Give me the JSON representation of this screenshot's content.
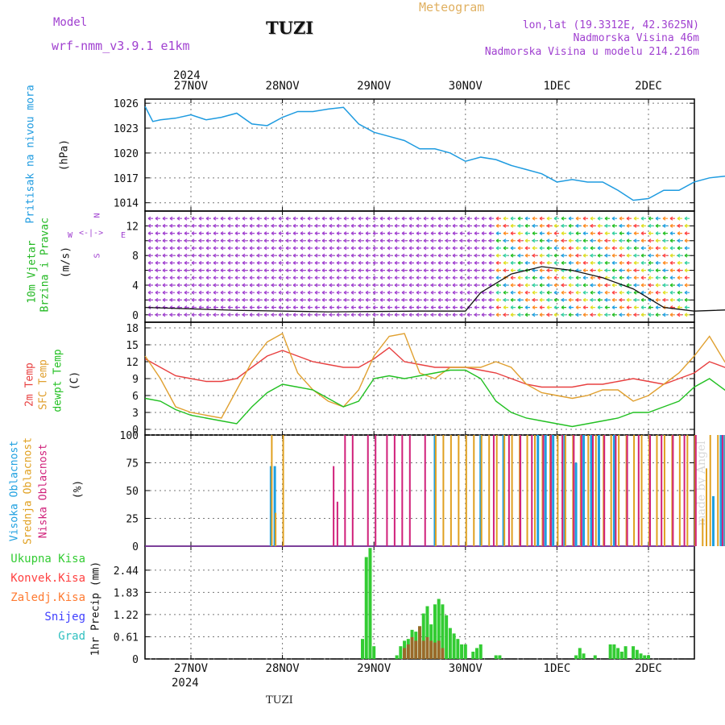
{
  "header": {
    "model_label": "Model",
    "model_name": "wrf-nmm_v3.9.1  e1km",
    "station": "TUZI",
    "title": "Meteogram",
    "lonlat": "lon,lat (19.3312E, 42.3625N)",
    "elev": "Nadmorska Visina 46m",
    "elev_model": "Nadmorska Visina u modelu 214.216m",
    "footer_station": "TUZI",
    "watermark": "made by Angel"
  },
  "colors": {
    "pressure": "#1e9be0",
    "temp2m": "#e84040",
    "sfc": "#e0a030",
    "dew": "#22c022",
    "high": "#1ea0e0",
    "mid": "#e0a020",
    "low": "#d0207a",
    "purple": "#a040d0",
    "total": "#33cc33",
    "convective": "#ff4040",
    "freezing": "#ff7a30",
    "snow": "#4040ff",
    "hail": "#30c0c0"
  },
  "dates": {
    "year": "2024",
    "labels": [
      "27NOV",
      "28NOV",
      "29NOV",
      "30NOV",
      "1DEC",
      "2DEC"
    ]
  },
  "panels": {
    "pressure": {
      "ylabel": "Pritisak na nivou mora",
      "unit": "(hPa)"
    },
    "wind": {
      "ylabel1": "10m Vjetar",
      "ylabel2": "Brzina i Pravac",
      "unit": "(m/s)",
      "compass_n": "N",
      "compass_s": "S",
      "compass_w": "W",
      "compass_e": "E"
    },
    "temp": {
      "ylabel1": "2m Temp",
      "ylabel2": "SFC Temp",
      "ylabel3": "dewpt Temp",
      "unit": "(C)"
    },
    "cloud": {
      "ylabel1": "Visoka Oblacnost",
      "ylabel2": "Srednja Oblacnost",
      "ylabel3": "Niska Oblacnost",
      "unit": "(%)"
    },
    "precip": {
      "ylabel": "1hr Precip (mm)",
      "legend": [
        "Ukupna Kisa",
        "Konvek.Kisa",
        "Zaledj.Kisa",
        "Snijeg",
        "Grad"
      ]
    }
  },
  "chart_data": [
    {
      "type": "line",
      "title": "Pritisak na nivou mora",
      "ylabel": "(hPa)",
      "ylim": [
        1013,
        1026.5
      ],
      "yticks": [
        1014,
        1017,
        1020,
        1023,
        1026
      ],
      "x_hours": [
        0,
        2,
        4,
        8,
        12,
        16,
        20,
        24,
        28,
        32,
        36,
        40,
        44,
        48,
        52,
        56,
        60,
        64,
        68,
        72,
        76,
        80,
        84,
        88,
        92,
        96,
        100,
        104,
        108,
        112,
        116,
        120,
        124,
        128,
        132,
        136,
        140,
        144,
        148,
        152,
        156,
        160,
        164,
        168,
        170
      ],
      "values": [
        1025.6,
        1023.8,
        1024,
        1024.2,
        1024.6,
        1024,
        1024.3,
        1024.8,
        1023.5,
        1023.3,
        1024.3,
        1025,
        1025,
        1025.3,
        1025.5,
        1023.5,
        1022.5,
        1022,
        1021.5,
        1020.5,
        1020.5,
        1020,
        1019,
        1019.5,
        1019.2,
        1018.5,
        1018,
        1017.5,
        1016.5,
        1016.8,
        1016.5,
        1016.5,
        1015.5,
        1014.3,
        1014.5,
        1015.5,
        1015.5,
        1016.5,
        1017,
        1017.2,
        1017.5,
        1018,
        1018.6,
        1017.8,
        1017.5
      ]
    },
    {
      "type": "line",
      "title": "10m Vjetar Brzina i Pravac",
      "ylabel": "(m/s)",
      "ylim": [
        -1,
        14
      ],
      "yticks": [
        0,
        4,
        8,
        12
      ],
      "yticks_extra": [
        2,
        6,
        10
      ],
      "x_hours": [
        0,
        24,
        48,
        72,
        84,
        88,
        96,
        104,
        112,
        120,
        128,
        136,
        144,
        160,
        170
      ],
      "values": [
        1,
        0.6,
        0.4,
        0.5,
        0.5,
        3,
        5.5,
        6.5,
        6,
        5,
        3.5,
        1,
        0.5,
        0.8,
        1
      ]
    },
    {
      "type": "line",
      "title": "2m / SFC / dewpt Temp",
      "ylabel": "(C)",
      "ylim": [
        -1,
        19
      ],
      "yticks": [
        0,
        3,
        6,
        9,
        12,
        15,
        18
      ],
      "x_hours": [
        0,
        4,
        8,
        12,
        16,
        20,
        24,
        28,
        32,
        36,
        40,
        44,
        48,
        52,
        56,
        60,
        64,
        68,
        72,
        76,
        80,
        84,
        88,
        92,
        96,
        100,
        104,
        108,
        112,
        116,
        120,
        124,
        128,
        132,
        136,
        140,
        144,
        148,
        152,
        156,
        160,
        164,
        168,
        170
      ],
      "series": [
        {
          "name": "2m Temp",
          "values": [
            12.5,
            11,
            9.5,
            9,
            8.5,
            8.5,
            9,
            11,
            13,
            14,
            13,
            12,
            11.5,
            11,
            11,
            12.5,
            14.5,
            12,
            11.5,
            11,
            11,
            11,
            10.5,
            10,
            9,
            8,
            7.5,
            7.5,
            7.5,
            8,
            8,
            8.5,
            9,
            8.5,
            8,
            9,
            10,
            12,
            11,
            10,
            8.5,
            8,
            9,
            11.5
          ]
        },
        {
          "name": "SFC Temp",
          "values": [
            13,
            9,
            4,
            3,
            2.5,
            2,
            7,
            12,
            15.5,
            17,
            10,
            7,
            5,
            4,
            7,
            13,
            16.5,
            17,
            10,
            9,
            11,
            11,
            11,
            12,
            11,
            8,
            6.5,
            6,
            5.5,
            6,
            7,
            7,
            5,
            6,
            8,
            10,
            13,
            16.5,
            12,
            9,
            7.5,
            7,
            9,
            15
          ]
        },
        {
          "name": "dewpt Temp",
          "values": [
            5.5,
            5,
            3.5,
            2.5,
            2,
            1.5,
            1,
            4,
            6.5,
            8,
            7.5,
            7,
            5.5,
            4,
            5,
            9,
            9.5,
            9,
            9.5,
            10,
            10.5,
            10.5,
            9,
            5,
            3,
            2,
            1.5,
            1,
            0.5,
            1,
            1.5,
            2,
            3,
            3,
            4,
            5,
            7.5,
            9,
            7,
            5,
            3.5,
            1,
            4,
            7
          ]
        }
      ]
    },
    {
      "type": "bar",
      "title": "Oblacnost",
      "ylabel": "(%)",
      "ylim": [
        0,
        100
      ],
      "yticks": [
        0,
        25,
        50,
        75,
        100
      ],
      "series": [
        {
          "name": "Visoka Oblacnost",
          "x_hours": [
            45,
            46,
            88,
            100,
            106,
            115,
            117,
            119,
            122,
            125,
            127,
            129,
            131,
            135,
            161,
            163,
            164,
            165,
            166,
            167,
            168
          ],
          "values": [
            72,
            72,
            100,
            100,
            100,
            100,
            100,
            100,
            100,
            75,
            100,
            100,
            100,
            100,
            45,
            100,
            100,
            100,
            100,
            100,
            100
          ]
        },
        {
          "name": "Srednja Oblacnost",
          "x_hours": [
            45,
            46,
            48,
            88,
            90,
            92,
            94,
            96,
            98,
            100,
            102,
            104,
            106,
            108,
            110,
            112,
            114,
            116,
            118,
            120,
            122,
            124,
            126,
            128,
            130,
            132,
            134,
            136,
            138,
            140,
            142,
            144,
            146,
            148,
            150,
            152,
            154,
            156,
            158,
            159,
            160,
            162,
            164,
            166,
            168,
            170
          ],
          "values": [
            100,
            30,
            100,
            100,
            100,
            100,
            100,
            100,
            100,
            100,
            100,
            100,
            100,
            100,
            100,
            100,
            100,
            100,
            100,
            100,
            100,
            100,
            100,
            100,
            100,
            100,
            100,
            100,
            100,
            100,
            100,
            100,
            100,
            100,
            100,
            100,
            100,
            100,
            25,
            70,
            100,
            100,
            100,
            100,
            100,
            100
          ]
        },
        {
          "name": "Niska Oblacnost",
          "x_hours": [
            61,
            62,
            64,
            66,
            70,
            72,
            75,
            77,
            79,
            81,
            85,
            103,
            107,
            110,
            113,
            116,
            118,
            121,
            124,
            126,
            129,
            132,
            135,
            138,
            141,
            144,
            147,
            150,
            153,
            156,
            163,
            166,
            169
          ],
          "values": [
            72,
            40,
            100,
            100,
            100,
            100,
            100,
            100,
            100,
            100,
            100,
            100,
            100,
            100,
            100,
            100,
            100,
            100,
            100,
            100,
            100,
            100,
            100,
            100,
            100,
            100,
            100,
            100,
            100,
            100,
            100,
            100,
            100
          ]
        }
      ]
    },
    {
      "type": "bar",
      "title": "1hr Precip",
      "ylabel": "1hr Precip (mm)",
      "ylim": [
        0,
        3.1
      ],
      "yticks": [
        0,
        0.61,
        1.22,
        1.83,
        2.44
      ],
      "series": [
        {
          "name": "Ukupna Kisa",
          "x_hours": [
            69,
            70,
            71,
            72,
            78,
            79,
            80,
            81,
            82,
            83,
            84,
            85,
            86,
            87,
            88,
            89,
            90,
            91,
            92,
            93,
            94,
            95,
            96,
            98,
            99,
            100,
            104,
            105,
            125,
            126,
            127,
            130,
            134,
            135,
            136,
            137,
            138,
            140,
            141,
            142,
            143,
            144
          ],
          "values": [
            0.55,
            2.8,
            3.05,
            0.35,
            0.1,
            0.35,
            0.5,
            0.55,
            0.8,
            0.75,
            0.9,
            1.25,
            1.45,
            0.95,
            1.5,
            1.65,
            1.5,
            1.2,
            0.85,
            0.7,
            0.55,
            0.4,
            0.4,
            0.2,
            0.3,
            0.4,
            0.1,
            0.1,
            0.1,
            0.3,
            0.15,
            0.1,
            0.4,
            0.4,
            0.3,
            0.2,
            0.35,
            0.35,
            0.25,
            0.15,
            0.1,
            0.1
          ]
        },
        {
          "name": "Konvek.Kisa",
          "x_hours": [
            80,
            81,
            82,
            83,
            84,
            85,
            86,
            87,
            88,
            89,
            90
          ],
          "values": [
            0.3,
            0.4,
            0.6,
            0.5,
            0.9,
            0.5,
            0.6,
            0.5,
            0.45,
            0.5,
            0.3
          ]
        }
      ]
    }
  ]
}
